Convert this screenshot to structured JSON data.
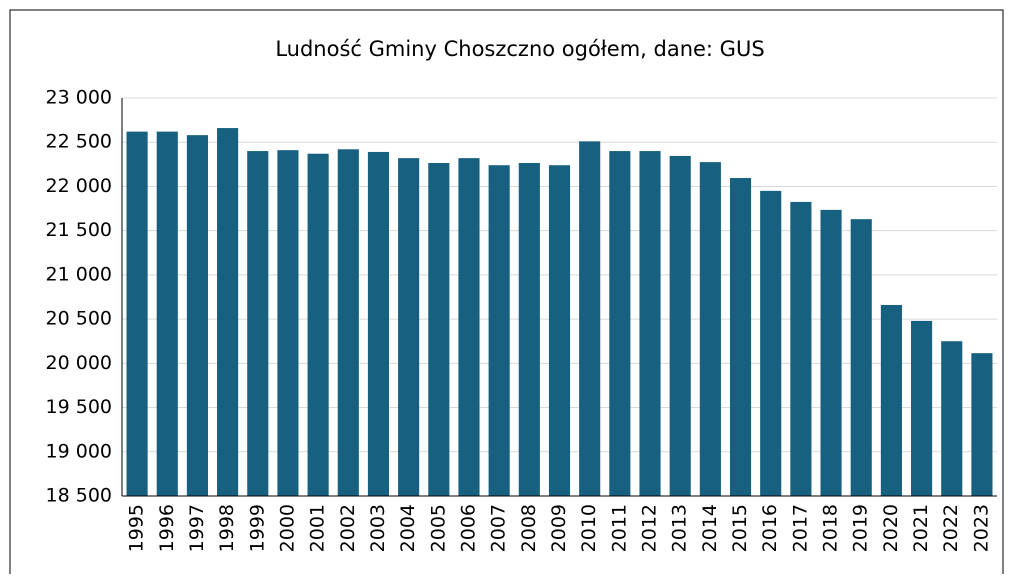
{
  "chart_data": {
    "type": "bar",
    "title": "Ludność Gminy Choszczno ogółem, dane: GUS",
    "categories": [
      "1995",
      "1996",
      "1997",
      "1998",
      "1999",
      "2000",
      "2001",
      "2002",
      "2003",
      "2004",
      "2005",
      "2006",
      "2007",
      "2008",
      "2009",
      "2010",
      "2011",
      "2012",
      "2013",
      "2014",
      "2015",
      "2016",
      "2017",
      "2018",
      "2019",
      "2020",
      "2021",
      "2022",
      "2023"
    ],
    "values": [
      22620,
      22620,
      22580,
      22660,
      22400,
      22410,
      22370,
      22420,
      22390,
      22320,
      22265,
      22320,
      22240,
      22265,
      22240,
      22510,
      22400,
      22400,
      22345,
      22275,
      22095,
      21950,
      21825,
      21735,
      21630,
      20660,
      20480,
      20250,
      20115
    ],
    "color": "#17607f",
    "ylim": [
      18500,
      23000
    ],
    "yticks": [
      {
        "value": 18500,
        "label": "18 500"
      },
      {
        "value": 19000,
        "label": "19 000"
      },
      {
        "value": 19500,
        "label": "19 500"
      },
      {
        "value": 20000,
        "label": "20 000"
      },
      {
        "value": 20500,
        "label": "20 500"
      },
      {
        "value": 21000,
        "label": "21 000"
      },
      {
        "value": 21500,
        "label": "21 500"
      },
      {
        "value": 22000,
        "label": "22 000"
      },
      {
        "value": 22500,
        "label": "22 500"
      },
      {
        "value": 23000,
        "label": "23 000"
      }
    ],
    "grid": true
  }
}
